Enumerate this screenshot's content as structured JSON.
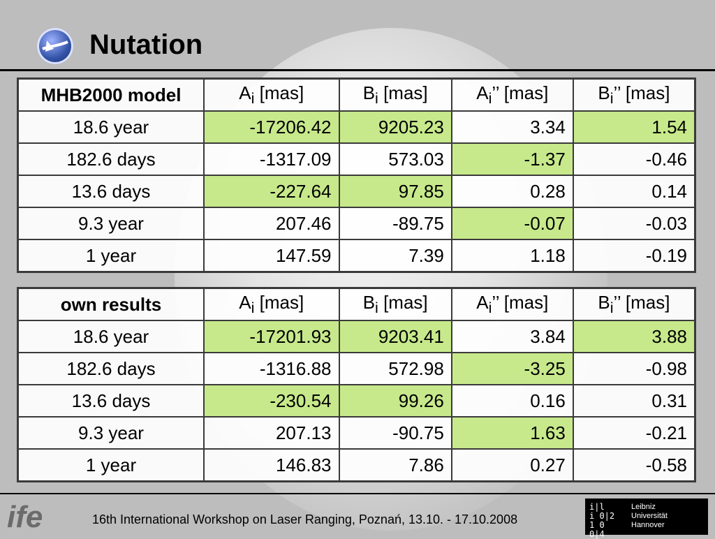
{
  "slide": {
    "title": "Nutation"
  },
  "tables": [
    {
      "header": [
        "MHB2000 model",
        "A",
        "i",
        " [mas]",
        "B",
        "i",
        " [mas]",
        "A",
        "i",
        "’’ [mas]",
        "B",
        "i",
        "’’ [mas]"
      ],
      "rows": [
        {
          "label": "18.6 year",
          "cells": [
            "-17206.42",
            "9205.23",
            "3.34",
            "1.54"
          ],
          "hl": [
            true,
            true,
            false,
            true
          ]
        },
        {
          "label": "182.6 days",
          "cells": [
            "-1317.09",
            "573.03",
            "-1.37",
            "-0.46"
          ],
          "hl": [
            false,
            false,
            true,
            false
          ]
        },
        {
          "label": "13.6 days",
          "cells": [
            "-227.64",
            "97.85",
            "0.28",
            "0.14"
          ],
          "hl": [
            true,
            true,
            false,
            false
          ]
        },
        {
          "label": "9.3 year",
          "cells": [
            "207.46",
            "-89.75",
            "-0.07",
            "-0.03"
          ],
          "hl": [
            false,
            false,
            true,
            false
          ]
        },
        {
          "label": "1 year",
          "cells": [
            "147.59",
            "7.39",
            "1.18",
            "-0.19"
          ],
          "hl": [
            false,
            false,
            false,
            false
          ]
        }
      ]
    },
    {
      "header": [
        "own results",
        "A",
        "i",
        " [mas]",
        "B",
        "i",
        " [mas]",
        "A",
        "i",
        "’’ [mas]",
        "B",
        "i",
        "’’ [mas]"
      ],
      "rows": [
        {
          "label": "18.6 year",
          "cells": [
            "-17201.93",
            "9203.41",
            "3.84",
            "3.88"
          ],
          "hl": [
            true,
            true,
            false,
            true
          ]
        },
        {
          "label": "182.6 days",
          "cells": [
            "-1316.88",
            "572.98",
            "-3.25",
            "-0.98"
          ],
          "hl": [
            false,
            false,
            true,
            false
          ]
        },
        {
          "label": "13.6 days",
          "cells": [
            "-230.54",
            "99.26",
            "0.16",
            "0.31"
          ],
          "hl": [
            true,
            true,
            false,
            false
          ]
        },
        {
          "label": "9.3 year",
          "cells": [
            "207.13",
            "-90.75",
            "1.63",
            "-0.21"
          ],
          "hl": [
            false,
            false,
            true,
            false
          ]
        },
        {
          "label": "1 year",
          "cells": [
            "146.83",
            "7.86",
            "0.27",
            "-0.58"
          ],
          "hl": [
            false,
            false,
            false,
            false
          ]
        }
      ]
    }
  ],
  "footer": {
    "text": "16th International Workshop on Laser Ranging, Poznań, 13.10. - 17.10.2008",
    "logo_left": "ife",
    "logo_right_text": [
      "Leibniz",
      "Universität",
      "Hannover"
    ],
    "logo_right_grid": [
      "i|l",
      "i 0|2",
      "1 0 0|4"
    ]
  },
  "colors": {
    "highlight": "#c7e98b",
    "background": "#bdbdbd"
  }
}
